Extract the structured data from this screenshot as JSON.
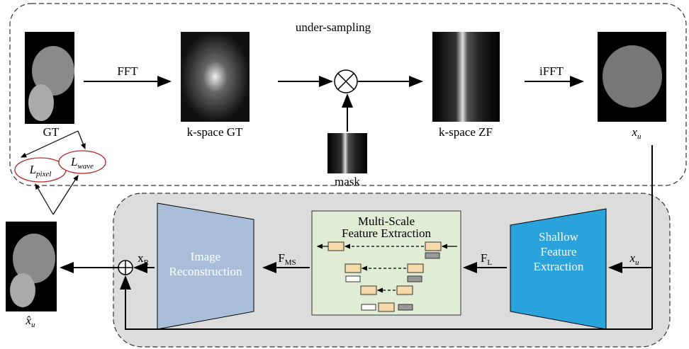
{
  "top": {
    "title": "under-sampling",
    "fft": "FFT",
    "ifft": "iFFT",
    "gt": "GT",
    "kspace_gt": "k-space GT",
    "mask": "mask",
    "kspace_zf": "k-space ZF",
    "xu": {
      "base": "x",
      "sub": "u"
    }
  },
  "losses": {
    "pixel": {
      "base": "L",
      "sub": "pixel"
    },
    "wave": {
      "base": "L",
      "sub": "wave"
    }
  },
  "bottom": {
    "shallow": "Shallow Feature Extraction",
    "multiscale": "Multi-Scale Feature Extraction",
    "recon": "Image Reconstruction",
    "xu_in": {
      "base": "x",
      "sub": "u"
    },
    "fl": {
      "base": "F",
      "sub": "L"
    },
    "fms": {
      "base": "F",
      "sub": "MS"
    },
    "xr": {
      "base": "x",
      "sub": "R"
    },
    "xhat": {
      "base": "x̂",
      "sub": "u"
    }
  }
}
